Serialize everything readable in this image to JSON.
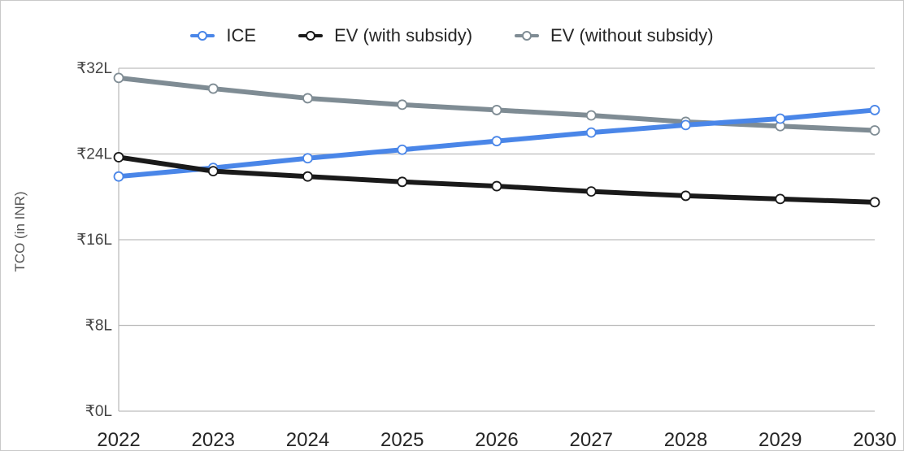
{
  "chart_data": {
    "type": "line",
    "title": "",
    "xlabel": "",
    "ylabel": "TCO (in INR)",
    "x": [
      "2022",
      "2023",
      "2024",
      "2025",
      "2026",
      "2027",
      "2028",
      "2029",
      "2030"
    ],
    "yticks": [
      {
        "value": 0,
        "label": "₹0L"
      },
      {
        "value": 8,
        "label": "₹8L"
      },
      {
        "value": 16,
        "label": "₹16L"
      },
      {
        "value": 24,
        "label": "₹24L"
      },
      {
        "value": 32,
        "label": "₹32L"
      }
    ],
    "ylim": [
      0,
      32
    ],
    "grid": true,
    "legend_position": "top",
    "series": [
      {
        "name": "ICE",
        "color": "#4a86e8",
        "values": [
          21.9,
          22.7,
          23.6,
          24.4,
          25.2,
          26.0,
          26.7,
          27.3,
          28.1
        ]
      },
      {
        "name": "EV (with subsidy)",
        "color": "#1a1a1a",
        "values": [
          23.7,
          22.4,
          21.9,
          21.4,
          21.0,
          20.5,
          20.1,
          19.8,
          19.5
        ]
      },
      {
        "name": "EV (without subsidy)",
        "color": "#7f8c94",
        "values": [
          31.1,
          30.1,
          29.2,
          28.6,
          28.1,
          27.6,
          27.0,
          26.6,
          26.2
        ]
      }
    ]
  }
}
